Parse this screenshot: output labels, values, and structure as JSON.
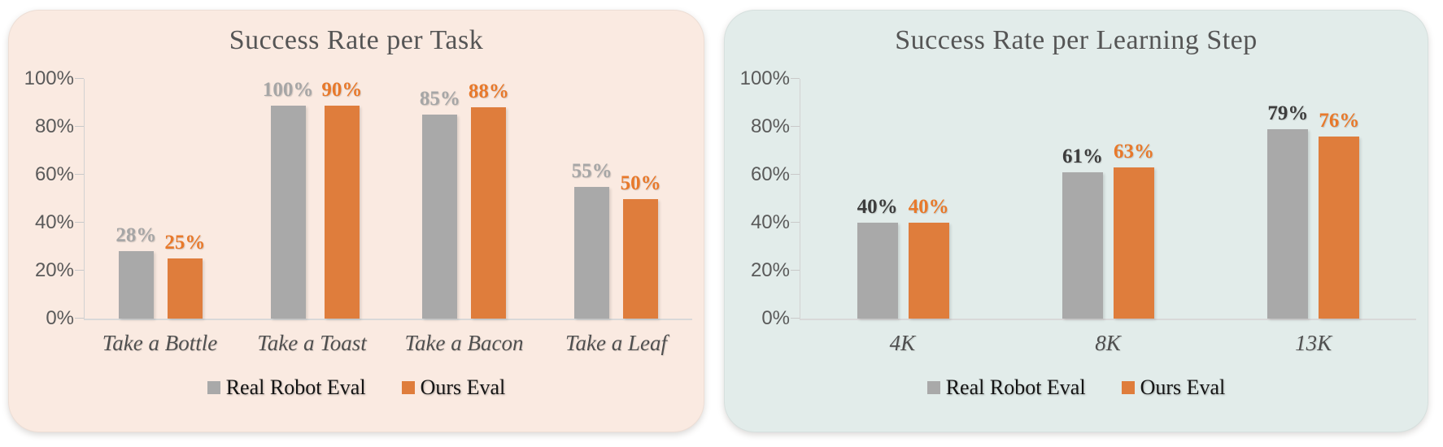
{
  "chart_data": [
    {
      "type": "bar",
      "title": "Success Rate per Task",
      "panel_bg": "#FAEAE1",
      "categories": [
        "Take a Bottle",
        "Take a Toast",
        "Take a Bacon",
        "Take a Leaf"
      ],
      "series": [
        {
          "name": "Real Robot Eval",
          "color": "#A9A9A9",
          "label_color": "#A6A6A6",
          "values": [
            28,
            100,
            85,
            55
          ]
        },
        {
          "name": "Ours Eval",
          "color": "#DF7D3C",
          "label_color": "#E8792B",
          "values": [
            25,
            90,
            88,
            50
          ]
        }
      ],
      "ylim": [
        0,
        100
      ],
      "yticks": [
        "100%",
        "80%",
        "60%",
        "40%",
        "20%",
        "0%"
      ],
      "grid": false,
      "legend_position": "bottom"
    },
    {
      "type": "bar",
      "title": "Success Rate per Learning Step",
      "panel_bg": "#E2ECEA",
      "categories": [
        "4K",
        "8K",
        "13K"
      ],
      "series": [
        {
          "name": "Real Robot Eval",
          "color": "#A9A9A9",
          "label_color": "#3D3D3D",
          "values": [
            40,
            61,
            79
          ]
        },
        {
          "name": "Ours Eval",
          "color": "#DF7D3C",
          "label_color": "#E8792B",
          "values": [
            40,
            63,
            76
          ]
        }
      ],
      "ylim": [
        0,
        100
      ],
      "yticks": [
        "100%",
        "80%",
        "60%",
        "40%",
        "20%",
        "0%"
      ],
      "grid": false,
      "legend_position": "bottom"
    }
  ]
}
